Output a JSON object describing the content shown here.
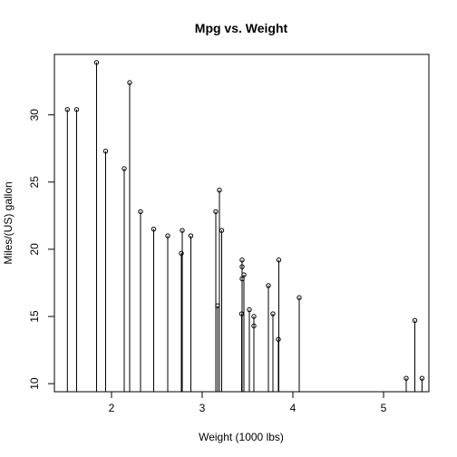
{
  "chart_data": {
    "type": "scatter",
    "style": "stem",
    "title": "Mpg vs. Weight",
    "xlabel": "Weight (1000 lbs)",
    "ylabel": "Miles/(US) gallon",
    "xlim": [
      1.37,
      5.5
    ],
    "ylim": [
      9.4,
      34.5
    ],
    "baseline": 9.4,
    "xticks": [
      2,
      3,
      4,
      5
    ],
    "yticks": [
      10,
      15,
      20,
      25,
      30
    ],
    "grid": false,
    "legend": "none",
    "points": [
      {
        "x": 2.62,
        "y": 21.0
      },
      {
        "x": 2.875,
        "y": 21.0
      },
      {
        "x": 2.32,
        "y": 22.8
      },
      {
        "x": 3.215,
        "y": 21.4
      },
      {
        "x": 3.44,
        "y": 18.7
      },
      {
        "x": 3.46,
        "y": 18.1
      },
      {
        "x": 3.57,
        "y": 14.3
      },
      {
        "x": 3.19,
        "y": 24.4
      },
      {
        "x": 3.15,
        "y": 22.8
      },
      {
        "x": 3.44,
        "y": 19.2
      },
      {
        "x": 3.44,
        "y": 17.8
      },
      {
        "x": 4.07,
        "y": 16.4
      },
      {
        "x": 3.73,
        "y": 17.3
      },
      {
        "x": 3.78,
        "y": 15.2
      },
      {
        "x": 5.25,
        "y": 10.4
      },
      {
        "x": 5.424,
        "y": 10.4
      },
      {
        "x": 5.345,
        "y": 14.7
      },
      {
        "x": 2.2,
        "y": 32.4
      },
      {
        "x": 1.615,
        "y": 30.4
      },
      {
        "x": 1.835,
        "y": 33.9
      },
      {
        "x": 2.465,
        "y": 21.5
      },
      {
        "x": 3.52,
        "y": 15.5
      },
      {
        "x": 3.435,
        "y": 15.2
      },
      {
        "x": 3.84,
        "y": 13.3
      },
      {
        "x": 3.845,
        "y": 19.2
      },
      {
        "x": 1.935,
        "y": 27.3
      },
      {
        "x": 2.14,
        "y": 26.0
      },
      {
        "x": 1.513,
        "y": 30.4
      },
      {
        "x": 3.17,
        "y": 15.8
      },
      {
        "x": 2.77,
        "y": 19.7
      },
      {
        "x": 3.57,
        "y": 15.0
      },
      {
        "x": 2.78,
        "y": 21.4
      }
    ]
  }
}
